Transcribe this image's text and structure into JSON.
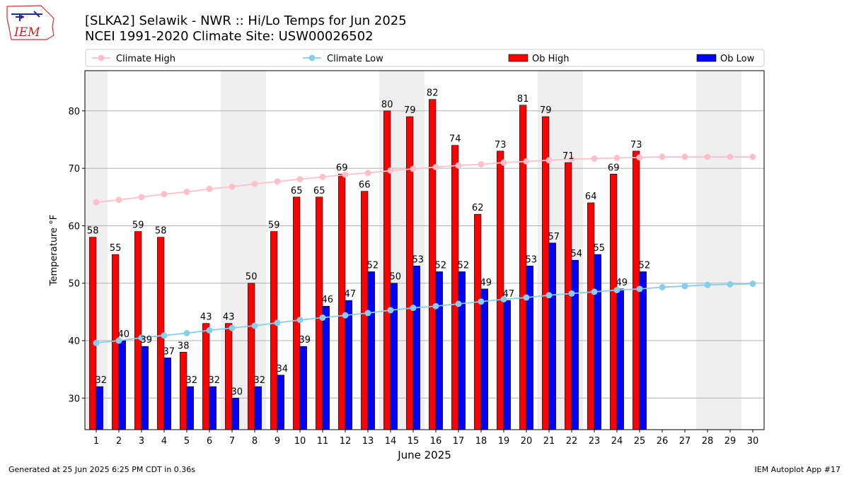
{
  "chart_data": {
    "type": "bar",
    "title": "[SLKA2] Selawik - NWR :: Hi/Lo Temps for Jun 2025",
    "subtitle": "NCEI 1991-2020 Climate Site: USW00026502",
    "xlabel": "June 2025",
    "ylabel": "Temperature °F",
    "ylim": [
      24.5,
      87
    ],
    "yticks": [
      30,
      40,
      50,
      60,
      70,
      80
    ],
    "grid": true,
    "legend_placement": "top",
    "legend": [
      {
        "name": "Climate High",
        "kind": "line",
        "color": "#ffc0cb"
      },
      {
        "name": "Climate Low",
        "kind": "line",
        "color": "#87ceeb"
      },
      {
        "name": "Ob High",
        "kind": "bar",
        "color": "#ff0000"
      },
      {
        "name": "Ob Low",
        "kind": "bar",
        "color": "#0000ff"
      }
    ],
    "x": [
      1,
      2,
      3,
      4,
      5,
      6,
      7,
      8,
      9,
      10,
      11,
      12,
      13,
      14,
      15,
      16,
      17,
      18,
      19,
      20,
      21,
      22,
      23,
      24,
      25,
      26,
      27,
      28,
      29,
      30
    ],
    "weekend_shading": [
      [
        1,
        1
      ],
      [
        7,
        8
      ],
      [
        14,
        15
      ],
      [
        21,
        22
      ],
      [
        28,
        29
      ]
    ],
    "series": [
      {
        "name": "Ob High",
        "type": "bar",
        "color": "#ff0000",
        "values": [
          58,
          55,
          59,
          58,
          38,
          43,
          43,
          50,
          59,
          65,
          65,
          69,
          66,
          80,
          79,
          82,
          74,
          62,
          73,
          81,
          79,
          71,
          64,
          69,
          73,
          null,
          null,
          null,
          null,
          null
        ]
      },
      {
        "name": "Ob Low",
        "type": "bar",
        "color": "#0000ff",
        "values": [
          32,
          40,
          39,
          37,
          32,
          32,
          30,
          32,
          34,
          39,
          46,
          47,
          52,
          50,
          53,
          52,
          52,
          49,
          47,
          53,
          57,
          54,
          55,
          49,
          52,
          null,
          null,
          null,
          null,
          null
        ]
      },
      {
        "name": "Climate High",
        "type": "line",
        "color": "#ffc0cb",
        "values": [
          64.1,
          64.5,
          65.0,
          65.5,
          65.9,
          66.4,
          66.8,
          67.3,
          67.7,
          68.1,
          68.5,
          68.9,
          69.2,
          69.6,
          69.9,
          70.2,
          70.5,
          70.7,
          71.0,
          71.2,
          71.4,
          71.6,
          71.7,
          71.8,
          71.9,
          72.0,
          72.0,
          72.0,
          72.0,
          72.0
        ]
      },
      {
        "name": "Climate Low",
        "type": "line",
        "color": "#87ceeb",
        "values": [
          39.6,
          40.0,
          40.5,
          40.9,
          41.3,
          41.8,
          42.2,
          42.6,
          43.1,
          43.6,
          44.0,
          44.4,
          44.8,
          45.3,
          45.7,
          46.0,
          46.4,
          46.8,
          47.2,
          47.5,
          47.9,
          48.2,
          48.5,
          48.8,
          49.0,
          49.3,
          49.5,
          49.7,
          49.8,
          49.9
        ]
      }
    ]
  },
  "logo_text": "IEM",
  "footer": {
    "left": "Generated at 25 Jun 2025 6:25 PM CDT in 0.36s",
    "right": "IEM Autoplot App #17"
  }
}
